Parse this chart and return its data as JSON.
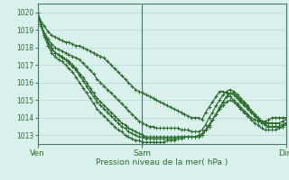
{
  "bg_color": "#daf0ec",
  "grid_color": "#b8d8d4",
  "line_color": "#2d6e2d",
  "marker": "+",
  "markersize": 3,
  "linewidth": 0.9,
  "ylabel_ticks": [
    1013,
    1014,
    1015,
    1016,
    1017,
    1018,
    1019,
    1020
  ],
  "ylim": [
    1012.5,
    1020.5
  ],
  "xlabel": "Pression niveau de la mer( hPa )",
  "day_labels": [
    "Ven",
    "Sam",
    "Dim"
  ],
  "day_positions": [
    0,
    0.42,
    1.0
  ],
  "title": "",
  "n_points": 72,
  "series": [
    [
      1020.0,
      1019.5,
      1019.2,
      1018.9,
      1018.7,
      1018.6,
      1018.5,
      1018.4,
      1018.3,
      1018.3,
      1018.2,
      1018.1,
      1018.1,
      1018.0,
      1017.9,
      1017.8,
      1017.7,
      1017.6,
      1017.5,
      1017.4,
      1017.2,
      1017.0,
      1016.8,
      1016.6,
      1016.4,
      1016.2,
      1016.0,
      1015.8,
      1015.6,
      1015.5,
      1015.4,
      1015.3,
      1015.2,
      1015.1,
      1015.0,
      1014.9,
      1014.8,
      1014.7,
      1014.6,
      1014.5,
      1014.4,
      1014.3,
      1014.2,
      1014.1,
      1014.0,
      1014.0,
      1014.0,
      1013.9,
      1014.3,
      1014.6,
      1014.9,
      1015.2,
      1015.5,
      1015.5,
      1015.4,
      1015.2,
      1015.0,
      1014.8,
      1014.6,
      1014.4,
      1014.2,
      1014.0,
      1013.9,
      1013.8,
      1013.8,
      1013.8,
      1013.9,
      1014.0,
      1014.0,
      1014.0,
      1014.0,
      1014.0
    ],
    [
      1020.0,
      1019.3,
      1018.8,
      1018.5,
      1018.2,
      1018.0,
      1017.9,
      1017.8,
      1017.7,
      1017.6,
      1017.5,
      1017.4,
      1017.3,
      1017.1,
      1016.9,
      1016.7,
      1016.5,
      1016.2,
      1016.0,
      1015.8,
      1015.6,
      1015.4,
      1015.2,
      1015.0,
      1014.8,
      1014.6,
      1014.4,
      1014.2,
      1014.0,
      1013.8,
      1013.7,
      1013.6,
      1013.5,
      1013.5,
      1013.4,
      1013.4,
      1013.4,
      1013.4,
      1013.4,
      1013.4,
      1013.4,
      1013.3,
      1013.3,
      1013.3,
      1013.2,
      1013.2,
      1013.2,
      1013.3,
      1013.6,
      1014.0,
      1014.3,
      1014.7,
      1015.0,
      1015.3,
      1015.5,
      1015.6,
      1015.5,
      1015.3,
      1015.1,
      1014.9,
      1014.7,
      1014.4,
      1014.2,
      1014.0,
      1013.8,
      1013.7,
      1013.7,
      1013.7,
      1013.7,
      1013.7,
      1013.8,
      1013.9
    ],
    [
      1020.0,
      1019.3,
      1018.7,
      1018.3,
      1018.0,
      1017.7,
      1017.6,
      1017.5,
      1017.3,
      1017.2,
      1017.0,
      1016.8,
      1016.5,
      1016.3,
      1016.0,
      1015.7,
      1015.4,
      1015.1,
      1014.9,
      1014.7,
      1014.5,
      1014.3,
      1014.1,
      1013.9,
      1013.7,
      1013.6,
      1013.4,
      1013.3,
      1013.2,
      1013.1,
      1013.0,
      1012.9,
      1012.9,
      1012.9,
      1012.9,
      1012.9,
      1012.9,
      1012.9,
      1012.9,
      1012.9,
      1012.9,
      1012.9,
      1012.9,
      1012.9,
      1012.9,
      1012.9,
      1012.9,
      1013.0,
      1013.3,
      1013.6,
      1013.9,
      1014.2,
      1014.6,
      1014.9,
      1015.2,
      1015.4,
      1015.4,
      1015.2,
      1015.0,
      1014.8,
      1014.6,
      1014.4,
      1014.2,
      1014.0,
      1013.8,
      1013.6,
      1013.5,
      1013.5,
      1013.5,
      1013.5,
      1013.6,
      1013.7
    ],
    [
      1020.0,
      1019.3,
      1018.7,
      1018.3,
      1017.9,
      1017.7,
      1017.6,
      1017.4,
      1017.3,
      1017.1,
      1016.9,
      1016.7,
      1016.4,
      1016.1,
      1015.8,
      1015.5,
      1015.2,
      1014.9,
      1014.7,
      1014.5,
      1014.3,
      1014.1,
      1013.9,
      1013.7,
      1013.5,
      1013.4,
      1013.2,
      1013.1,
      1013.0,
      1012.9,
      1012.9,
      1012.8,
      1012.8,
      1012.8,
      1012.8,
      1012.8,
      1012.8,
      1012.8,
      1012.8,
      1012.8,
      1012.9,
      1012.9,
      1012.9,
      1012.9,
      1012.9,
      1012.9,
      1012.9,
      1013.0,
      1013.3,
      1013.5,
      1013.9,
      1014.2,
      1014.5,
      1014.9,
      1015.2,
      1015.4,
      1015.3,
      1015.1,
      1014.9,
      1014.7,
      1014.5,
      1014.3,
      1014.1,
      1013.9,
      1013.7,
      1013.6,
      1013.5,
      1013.5,
      1013.5,
      1013.5,
      1013.6,
      1013.7
    ],
    [
      1020.0,
      1019.2,
      1018.6,
      1018.1,
      1017.7,
      1017.5,
      1017.3,
      1017.2,
      1017.0,
      1016.8,
      1016.6,
      1016.3,
      1016.0,
      1015.7,
      1015.4,
      1015.1,
      1014.8,
      1014.5,
      1014.3,
      1014.1,
      1013.9,
      1013.7,
      1013.5,
      1013.3,
      1013.2,
      1013.0,
      1012.9,
      1012.8,
      1012.7,
      1012.7,
      1012.6,
      1012.6,
      1012.6,
      1012.6,
      1012.6,
      1012.6,
      1012.6,
      1012.7,
      1012.7,
      1012.7,
      1012.8,
      1012.8,
      1012.9,
      1012.9,
      1012.9,
      1012.9,
      1013.0,
      1013.1,
      1013.3,
      1013.5,
      1013.9,
      1014.2,
      1014.5,
      1014.7,
      1014.9,
      1015.0,
      1014.9,
      1014.7,
      1014.5,
      1014.3,
      1014.1,
      1013.9,
      1013.7,
      1013.6,
      1013.4,
      1013.3,
      1013.3,
      1013.3,
      1013.3,
      1013.4,
      1013.5,
      1013.6
    ]
  ]
}
